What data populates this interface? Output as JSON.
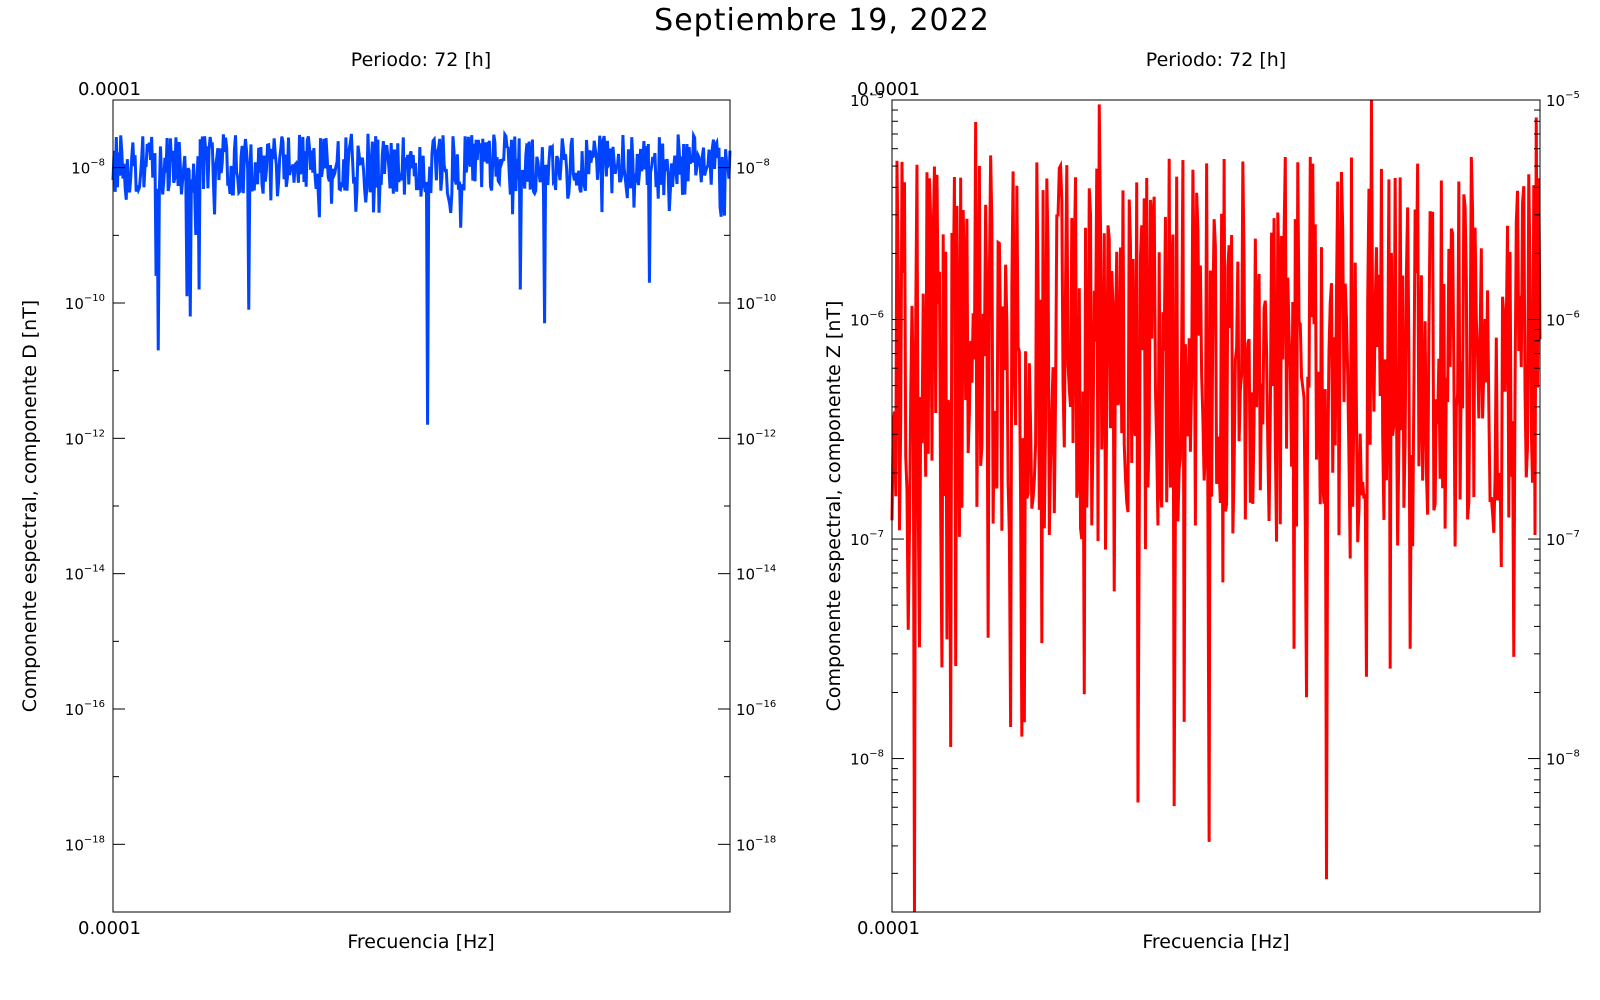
{
  "figure": {
    "title": "Septiembre 19, 2022"
  },
  "chart_data": [
    {
      "type": "line",
      "title": "Periodo: 72 [h]",
      "xlabel": "Frecuencia [Hz]",
      "ylabel": "Componente espectral, componente D [nT]",
      "x_tick_label": "0.0001",
      "top_corner_label": "0.0001",
      "y_scale": "log",
      "ylim": [
        1e-19,
        1e-07
      ],
      "y_major_ticks": [
        {
          "value": 1e-08,
          "base": "10",
          "exp": "−8"
        },
        {
          "value": 1e-10,
          "base": "10",
          "exp": "−10"
        },
        {
          "value": 1e-12,
          "base": "10",
          "exp": "−12"
        },
        {
          "value": 1e-14,
          "base": "10",
          "exp": "−14"
        },
        {
          "value": 1e-16,
          "base": "10",
          "exp": "−16"
        },
        {
          "value": 1e-18,
          "base": "10",
          "exp": "−18"
        }
      ],
      "y_minor_ticks": [
        1e-09,
        1e-11,
        1e-13,
        1e-15,
        1e-17,
        1e-19
      ],
      "grid": false,
      "series": [
        {
          "color": "#0044ff",
          "baseline_log10": -7.95,
          "fluctuation": 0.45,
          "n_points": 560,
          "dips": [
            {
              "position": 0.07,
              "log10": -9.6
            },
            {
              "position": 0.073,
              "log10": -10.7
            },
            {
              "position": 0.12,
              "log10": -9.9
            },
            {
              "position": 0.125,
              "log10": -10.2
            },
            {
              "position": 0.14,
              "log10": -9.8
            },
            {
              "position": 0.22,
              "log10": -10.1
            },
            {
              "position": 0.51,
              "log10": -11.8
            },
            {
              "position": 0.66,
              "log10": -9.8
            },
            {
              "position": 0.7,
              "log10": -10.3
            },
            {
              "position": 0.87,
              "log10": -9.7
            }
          ]
        }
      ]
    },
    {
      "type": "line",
      "title": "Periodo: 72 [h]",
      "xlabel": "Frecuencia [Hz]",
      "ylabel": "Componente espectral, componente Z [nT]",
      "x_tick_label": "0.0001",
      "top_corner_label": "0.0001",
      "y_scale": "log",
      "ylim": [
        2e-09,
        1e-05
      ],
      "y_major_ticks": [
        {
          "value": 1e-05,
          "base": "10",
          "exp": "−5"
        },
        {
          "value": 1e-06,
          "base": "10",
          "exp": "−6"
        },
        {
          "value": 1e-07,
          "base": "10",
          "exp": "−7"
        },
        {
          "value": 1e-08,
          "base": "10",
          "exp": "−8"
        }
      ],
      "y_minor_ticks": [
        9e-06,
        8e-06,
        7e-06,
        6e-06,
        5e-06,
        4e-06,
        3e-06,
        2e-06,
        9e-07,
        8e-07,
        7e-07,
        6e-07,
        5e-07,
        4e-07,
        3e-07,
        2e-07,
        9e-08,
        8e-08,
        7e-08,
        6e-08,
        5e-08,
        4e-08,
        3e-08,
        2e-08,
        9e-09,
        8e-09,
        7e-09,
        6e-09,
        5e-09,
        4e-09,
        3e-09
      ],
      "grid": false,
      "series": [
        {
          "color": "#ff0000",
          "baseline_log10": -6.15,
          "fluctuation": 0.9,
          "n_points": 520,
          "dips": [
            {
              "position": 0.035,
              "log10": -8.7
            },
            {
              "position": 0.13,
              "log10": -8.3
            },
            {
              "position": 0.2,
              "log10": -7.9
            },
            {
              "position": 0.32,
              "log10": -7.9
            },
            {
              "position": 0.38,
              "log10": -8.2
            },
            {
              "position": 0.67,
              "log10": -8.55
            },
            {
              "position": 0.62,
              "log10": -7.5
            },
            {
              "position": 0.8,
              "log10": -7.5
            }
          ],
          "peaks": [
            {
              "position": 0.32,
              "log10": -5.02
            },
            {
              "position": 0.74,
              "log10": -5.0
            },
            {
              "position": 0.13,
              "log10": -5.1
            },
            {
              "position": 0.995,
              "log10": -5.08
            }
          ]
        }
      ]
    }
  ]
}
